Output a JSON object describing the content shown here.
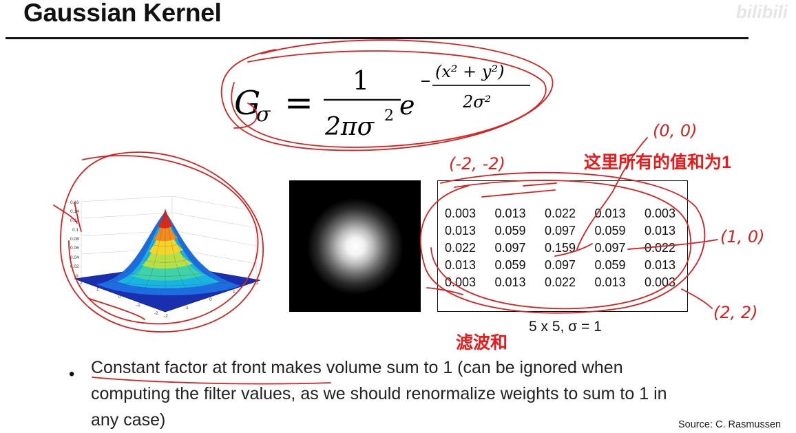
{
  "slide": {
    "title": "Gaussian Kernel",
    "watermark": "bilibili",
    "formula": {
      "lhs_symbol": "G",
      "lhs_subscript": "σ",
      "equals": "=",
      "fraction_numerator": "1",
      "fraction_denominator": "2πσ",
      "fraction_denominator_exp": "2",
      "base": "e",
      "exponent_numerator": "(x² + y²)",
      "exponent_denominator": "2σ²"
    },
    "surface_plot": {
      "z_ticks": [
        "0.16",
        "0.14",
        "0.12",
        "0.1",
        "0.08",
        "0.06",
        "0.04",
        "0.02",
        "0"
      ],
      "x_ticks": [
        "-2",
        "-1",
        "0",
        "1",
        "2"
      ],
      "y_ticks": [
        "2",
        "1",
        "0",
        "-1",
        "-2"
      ]
    },
    "kernel": {
      "rows": [
        [
          "0.003",
          "0.013",
          "0.022",
          "0.013",
          "0.003"
        ],
        [
          "0.013",
          "0.059",
          "0.097",
          "0.059",
          "0.013"
        ],
        [
          "0.022",
          "0.097",
          "0.159",
          "0.097",
          "0.022"
        ],
        [
          "0.013",
          "0.059",
          "0.097",
          "0.059",
          "0.013"
        ],
        [
          "0.003",
          "0.013",
          "0.022",
          "0.013",
          "0.003"
        ]
      ],
      "caption": "5 x 5, σ = 1"
    },
    "bullet": "Constant factor at front makes volume sum to 1 (can be ignored when computing the filter values, as we should renormalize weights to sum to 1 in any case)",
    "source": "Source: C. Rasmussen"
  },
  "annotations": {
    "note_sum": "这里所有的值和为1",
    "note_filter": "滤波和",
    "coord_origin": "(0, 0)",
    "coord_top_left": "(-2, -2)",
    "coord_right": "(1, 0)",
    "coord_bottom_right": "(2, 2)",
    "ink_color": "#d92020"
  }
}
